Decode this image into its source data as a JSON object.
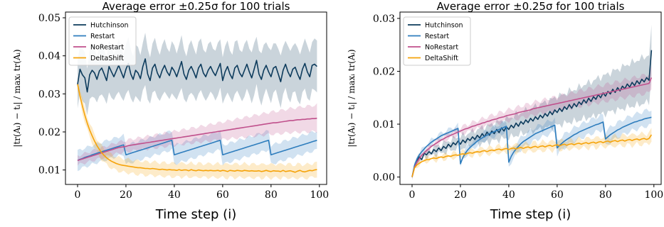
{
  "colors": {
    "Hutchinson": "#0d3b5c",
    "Restart": "#2e7dbd",
    "NoRestart": "#c0508c",
    "DeltaShift": "#f5a30a"
  },
  "chart_data": [
    {
      "type": "line",
      "title": "Average error ±0.25σ for 100 trials",
      "xlabel": "Time step (i)",
      "ylabel": "|tr(Aᵢ) − tᵢ| / maxᵢ tr(Aᵢ)",
      "xlim": [
        -5,
        103
      ],
      "ylim": [
        0.0062,
        0.0515
      ],
      "xticks": [
        "0",
        "20",
        "40",
        "60",
        "80",
        "100"
      ],
      "yticks": [
        "0.01",
        "0.02",
        "0.03",
        "0.04",
        "0.05"
      ],
      "ytick_values": [
        0.01,
        0.02,
        0.03,
        0.04,
        0.05
      ],
      "grid": false,
      "legend_position": "top-left",
      "series": [
        {
          "name": "Hutchinson",
          "band_halfwidth": [
            0.0065,
            0.0065,
            0.0065
          ],
          "mean": [
            0.0325,
            0.0365,
            0.035,
            0.0342,
            0.0305,
            0.035,
            0.0362,
            0.0355,
            0.0338,
            0.036,
            0.0368,
            0.0352,
            0.0335,
            0.0372,
            0.0358,
            0.0345,
            0.036,
            0.0375,
            0.0358,
            0.0342,
            0.0365,
            0.038,
            0.0352,
            0.0338,
            0.0362,
            0.0355,
            0.034,
            0.0372,
            0.0392,
            0.0352,
            0.0335,
            0.0368,
            0.0378,
            0.0355,
            0.0342,
            0.0362,
            0.0375,
            0.0358,
            0.0348,
            0.037,
            0.036,
            0.0345,
            0.0365,
            0.0385,
            0.0352,
            0.0338,
            0.0362,
            0.0372,
            0.0358,
            0.0342,
            0.0368,
            0.0378,
            0.0355,
            0.0345,
            0.0362,
            0.0372,
            0.0358,
            0.0348,
            0.0365,
            0.038,
            0.0335,
            0.0358,
            0.0372,
            0.0352,
            0.034,
            0.0368,
            0.0375,
            0.0355,
            0.0345,
            0.0362,
            0.0378,
            0.0358,
            0.0342,
            0.0365,
            0.0388,
            0.0352,
            0.0338,
            0.0362,
            0.0375,
            0.0358,
            0.0345,
            0.0368,
            0.0372,
            0.0352,
            0.0332,
            0.0362,
            0.0378,
            0.0358,
            0.0345,
            0.0365,
            0.037,
            0.0352,
            0.0338,
            0.0365,
            0.038,
            0.0358,
            0.0345,
            0.0375,
            0.0378,
            0.0372
          ]
        },
        {
          "name": "Restart",
          "band_halfwidth": [
            0.0025,
            0.0025,
            0.0025
          ],
          "mean": [
            0.0125,
            0.0128,
            0.013,
            0.0133,
            0.0135,
            0.0137,
            0.014,
            0.0142,
            0.0144,
            0.0146,
            0.0148,
            0.015,
            0.0152,
            0.0154,
            0.0156,
            0.0158,
            0.016,
            0.0162,
            0.0164,
            0.0166,
            0.014,
            0.0142,
            0.0144,
            0.0146,
            0.0148,
            0.015,
            0.0152,
            0.0154,
            0.0156,
            0.0158,
            0.016,
            0.0162,
            0.0164,
            0.0166,
            0.0168,
            0.017,
            0.0172,
            0.0174,
            0.0176,
            0.0178,
            0.014,
            0.0142,
            0.0144,
            0.0146,
            0.0148,
            0.015,
            0.0152,
            0.0154,
            0.0156,
            0.0158,
            0.016,
            0.0162,
            0.0164,
            0.0166,
            0.0168,
            0.017,
            0.0172,
            0.0174,
            0.0176,
            0.0178,
            0.014,
            0.0142,
            0.0144,
            0.0146,
            0.0148,
            0.015,
            0.0152,
            0.0154,
            0.0156,
            0.0158,
            0.016,
            0.0162,
            0.0164,
            0.0166,
            0.0168,
            0.017,
            0.0172,
            0.0174,
            0.0176,
            0.0178,
            0.014,
            0.0142,
            0.0144,
            0.0146,
            0.0148,
            0.015,
            0.0152,
            0.0154,
            0.0156,
            0.0158,
            0.016,
            0.0162,
            0.0164,
            0.0166,
            0.0168,
            0.017,
            0.0172,
            0.0174,
            0.0176,
            0.0178
          ]
        },
        {
          "name": "NoRestart",
          "band_halfwidth": [
            0.0012,
            0.002,
            0.0035
          ],
          "mean": [
            0.0125,
            0.0127,
            0.0129,
            0.0131,
            0.0133,
            0.0135,
            0.0137,
            0.0139,
            0.0141,
            0.0143,
            0.0145,
            0.0147,
            0.0149,
            0.0151,
            0.0153,
            0.0155,
            0.0157,
            0.0159,
            0.016,
            0.0161,
            0.0162,
            0.0164,
            0.0165,
            0.0166,
            0.0167,
            0.0168,
            0.0169,
            0.017,
            0.0171,
            0.0172,
            0.0173,
            0.0174,
            0.0175,
            0.0176,
            0.0177,
            0.0178,
            0.0179,
            0.018,
            0.0181,
            0.0182,
            0.0183,
            0.0184,
            0.0185,
            0.0186,
            0.0187,
            0.0188,
            0.0189,
            0.019,
            0.0191,
            0.0192,
            0.0193,
            0.0194,
            0.0195,
            0.0196,
            0.0197,
            0.0198,
            0.0199,
            0.02,
            0.0201,
            0.0202,
            0.0203,
            0.0204,
            0.0205,
            0.0206,
            0.0207,
            0.0208,
            0.0209,
            0.021,
            0.0211,
            0.0212,
            0.0213,
            0.0214,
            0.0215,
            0.0216,
            0.0217,
            0.0218,
            0.0219,
            0.022,
            0.0221,
            0.0222,
            0.0223,
            0.0224,
            0.0224,
            0.0225,
            0.0226,
            0.0227,
            0.0228,
            0.0229,
            0.023,
            0.023,
            0.0231,
            0.0232,
            0.0232,
            0.0233,
            0.0233,
            0.0234,
            0.0234,
            0.0235,
            0.0235,
            0.0236
          ]
        },
        {
          "name": "DeltaShift",
          "band_halfwidth": [
            0.0018,
            0.0018,
            0.0018
          ],
          "mean": [
            0.0325,
            0.0295,
            0.0268,
            0.0244,
            0.0223,
            0.0205,
            0.019,
            0.0176,
            0.0164,
            0.0154,
            0.0145,
            0.0138,
            0.0132,
            0.0127,
            0.0123,
            0.012,
            0.0117,
            0.0115,
            0.0113,
            0.0112,
            0.0111,
            0.011,
            0.0109,
            0.0108,
            0.0107,
            0.0106,
            0.0106,
            0.0105,
            0.0104,
            0.0104,
            0.0103,
            0.0104,
            0.0103,
            0.0102,
            0.0101,
            0.0102,
            0.0101,
            0.01,
            0.0101,
            0.01,
            0.01,
            0.0099,
            0.0101,
            0.0099,
            0.01,
            0.01,
            0.0098,
            0.0101,
            0.0099,
            0.0098,
            0.01,
            0.0099,
            0.0098,
            0.0099,
            0.0098,
            0.0099,
            0.0098,
            0.0098,
            0.0099,
            0.0097,
            0.0099,
            0.0098,
            0.0096,
            0.0099,
            0.0098,
            0.0097,
            0.0099,
            0.0098,
            0.0097,
            0.0099,
            0.0098,
            0.0097,
            0.0098,
            0.0097,
            0.0097,
            0.0098,
            0.0096,
            0.0097,
            0.0099,
            0.0097,
            0.0096,
            0.0098,
            0.0097,
            0.0097,
            0.0096,
            0.0099,
            0.0096,
            0.0097,
            0.0098,
            0.0096,
            0.0094,
            0.0097,
            0.0099,
            0.0096,
            0.0095,
            0.0097,
            0.0099,
            0.0098,
            0.01,
            0.0101
          ]
        }
      ]
    },
    {
      "type": "line",
      "title": "Average error ±0.25σ for 100 trials",
      "xlabel": "Time step (i)",
      "ylabel": "|tr(Aᵢ) − tᵢ| / maxᵢ tr(Aᵢ)",
      "xlim": [
        -5,
        103
      ],
      "ylim": [
        -0.0014,
        0.0312
      ],
      "xticks": [
        "0",
        "20",
        "40",
        "60",
        "80",
        "100"
      ],
      "yticks": [
        "0.00",
        "0.01",
        "0.02",
        "0.03"
      ],
      "ytick_values": [
        0.0,
        0.01,
        0.02,
        0.03
      ],
      "grid": false,
      "legend_position": "top-left",
      "series": [
        {
          "name": "Hutchinson",
          "band_halfwidth": [
            0.0004,
            0.0022,
            0.0045
          ],
          "mean": [
            0.0,
            0.0018,
            0.003,
            0.0038,
            0.0033,
            0.0045,
            0.0042,
            0.0048,
            0.0044,
            0.0052,
            0.0048,
            0.0055,
            0.005,
            0.0058,
            0.0054,
            0.0062,
            0.0057,
            0.0065,
            0.0061,
            0.0068,
            0.0062,
            0.007,
            0.0065,
            0.0073,
            0.0069,
            0.0076,
            0.0071,
            0.0079,
            0.0074,
            0.0082,
            0.0076,
            0.0085,
            0.0079,
            0.0087,
            0.0082,
            0.009,
            0.0084,
            0.0093,
            0.0087,
            0.0095,
            0.009,
            0.0098,
            0.0093,
            0.0102,
            0.0096,
            0.0105,
            0.01,
            0.0108,
            0.0103,
            0.0111,
            0.0106,
            0.0114,
            0.0109,
            0.0117,
            0.0112,
            0.012,
            0.0115,
            0.0124,
            0.0118,
            0.0127,
            0.0122,
            0.013,
            0.0124,
            0.0133,
            0.0128,
            0.0137,
            0.013,
            0.0139,
            0.0133,
            0.0142,
            0.0137,
            0.0146,
            0.014,
            0.0149,
            0.0143,
            0.0152,
            0.0147,
            0.0156,
            0.015,
            0.0159,
            0.0153,
            0.0162,
            0.0157,
            0.0166,
            0.016,
            0.0169,
            0.0163,
            0.0172,
            0.0167,
            0.0176,
            0.017,
            0.0179,
            0.0173,
            0.0182,
            0.0176,
            0.0185,
            0.018,
            0.0188,
            0.0183,
            0.024
          ]
        },
        {
          "name": "Restart",
          "band_halfwidth": [
            0.0003,
            0.0012,
            0.0015
          ],
          "mean": [
            0.0,
            0.0022,
            0.0034,
            0.0042,
            0.0048,
            0.0053,
            0.0058,
            0.0062,
            0.0066,
            0.0069,
            0.0072,
            0.0075,
            0.0078,
            0.008,
            0.0082,
            0.0084,
            0.0086,
            0.0088,
            0.009,
            0.0092,
            0.0025,
            0.0037,
            0.0045,
            0.0051,
            0.0056,
            0.006,
            0.0064,
            0.0068,
            0.0071,
            0.0074,
            0.0077,
            0.0079,
            0.0082,
            0.0084,
            0.0086,
            0.0088,
            0.009,
            0.0092,
            0.0094,
            0.0096,
            0.0028,
            0.0039,
            0.0047,
            0.0053,
            0.0058,
            0.0063,
            0.0067,
            0.007,
            0.0073,
            0.0076,
            0.0079,
            0.0082,
            0.0084,
            0.0086,
            0.0088,
            0.009,
            0.0092,
            0.0094,
            0.0096,
            0.0098,
            0.0055,
            0.006,
            0.0064,
            0.0068,
            0.0071,
            0.0074,
            0.0077,
            0.008,
            0.0082,
            0.0085,
            0.0087,
            0.0089,
            0.0091,
            0.0093,
            0.0095,
            0.0097,
            0.0099,
            0.01,
            0.0102,
            0.0104,
            0.0072,
            0.0076,
            0.008,
            0.0083,
            0.0086,
            0.0089,
            0.0091,
            0.0094,
            0.0096,
            0.0098,
            0.01,
            0.0102,
            0.0104,
            0.0105,
            0.0107,
            0.0108,
            0.011,
            0.0111,
            0.0112,
            0.0113
          ]
        },
        {
          "name": "NoRestart",
          "band_halfwidth": [
            0.0003,
            0.0012,
            0.0018
          ],
          "mean": [
            0.0,
            0.0018,
            0.0028,
            0.0035,
            0.0041,
            0.0046,
            0.005,
            0.0054,
            0.0058,
            0.0061,
            0.0064,
            0.0067,
            0.007,
            0.0072,
            0.0075,
            0.0077,
            0.0079,
            0.0081,
            0.0083,
            0.0085,
            0.0087,
            0.0089,
            0.0091,
            0.0092,
            0.0094,
            0.0096,
            0.0097,
            0.0099,
            0.01,
            0.0102,
            0.0103,
            0.0105,
            0.0106,
            0.0108,
            0.0109,
            0.011,
            0.0112,
            0.0113,
            0.0114,
            0.0116,
            0.0117,
            0.0118,
            0.0119,
            0.012,
            0.0122,
            0.0123,
            0.0124,
            0.0125,
            0.0126,
            0.0127,
            0.0129,
            0.013,
            0.0131,
            0.0132,
            0.0133,
            0.0134,
            0.0135,
            0.0136,
            0.0137,
            0.0138,
            0.0139,
            0.014,
            0.0141,
            0.0142,
            0.0143,
            0.0144,
            0.0145,
            0.0146,
            0.0147,
            0.0148,
            0.0149,
            0.015,
            0.0151,
            0.0152,
            0.0153,
            0.0154,
            0.0155,
            0.0156,
            0.0157,
            0.0158,
            0.0159,
            0.016,
            0.0161,
            0.0162,
            0.0163,
            0.0164,
            0.0165,
            0.0166,
            0.0167,
            0.0168,
            0.0169,
            0.017,
            0.0171,
            0.0172,
            0.0173,
            0.0174,
            0.0175,
            0.0176,
            0.0177,
            0.0188
          ]
        },
        {
          "name": "DeltaShift",
          "band_halfwidth": [
            0.0003,
            0.0008,
            0.001
          ],
          "mean": [
            0.0,
            0.0017,
            0.0023,
            0.0026,
            0.0029,
            0.0031,
            0.0033,
            0.0033,
            0.0035,
            0.0036,
            0.0035,
            0.0037,
            0.0038,
            0.0037,
            0.0039,
            0.004,
            0.0039,
            0.0041,
            0.0042,
            0.0041,
            0.0043,
            0.0044,
            0.0043,
            0.0045,
            0.0046,
            0.0045,
            0.0047,
            0.0048,
            0.0047,
            0.0049,
            0.005,
            0.0048,
            0.005,
            0.0051,
            0.005,
            0.0052,
            0.0053,
            0.0051,
            0.0053,
            0.0054,
            0.0052,
            0.0054,
            0.0055,
            0.0053,
            0.0055,
            0.0056,
            0.0054,
            0.0056,
            0.0057,
            0.0055,
            0.0057,
            0.0058,
            0.0056,
            0.0058,
            0.0059,
            0.0057,
            0.0059,
            0.006,
            0.0058,
            0.006,
            0.0061,
            0.0059,
            0.0061,
            0.0062,
            0.006,
            0.0062,
            0.0063,
            0.0061,
            0.0063,
            0.0064,
            0.0062,
            0.0064,
            0.0065,
            0.0063,
            0.0065,
            0.0066,
            0.0064,
            0.0066,
            0.0067,
            0.0065,
            0.0067,
            0.0068,
            0.0066,
            0.0068,
            0.0069,
            0.0067,
            0.0069,
            0.007,
            0.0068,
            0.007,
            0.0071,
            0.0069,
            0.0071,
            0.0072,
            0.007,
            0.0072,
            0.0073,
            0.0071,
            0.0073,
            0.008
          ]
        }
      ]
    }
  ]
}
